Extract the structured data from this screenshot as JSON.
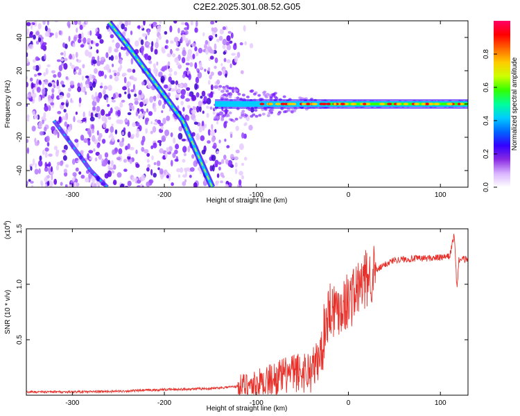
{
  "title": "C2E2.2025.301.08.52.G05",
  "chart_data": [
    {
      "type": "heatmap",
      "xlabel": "Height of straight line (km)",
      "ylabel": "Frequency (Hz)",
      "xlim": [
        -350,
        130
      ],
      "ylim": [
        -50,
        50
      ],
      "xticks": [
        -300,
        -200,
        -100,
        0,
        100
      ],
      "yticks": [
        -40,
        -20,
        0,
        20,
        40
      ],
      "colorbar": {
        "label": "Normalized spectral amplitude",
        "range": [
          0.0,
          1.0
        ],
        "ticks": [
          "0.0",
          "0.2",
          "0.4",
          "0.6",
          "0.8"
        ],
        "colors": [
          "#ffffff",
          "#d9b3ff",
          "#8a2be2",
          "#3300ff",
          "#0066ff",
          "#00ccff",
          "#00ff99",
          "#33ff00",
          "#ccff00",
          "#ffcc00",
          "#ff6600",
          "#ff0000",
          "#ff0066"
        ]
      },
      "main_track": [
        {
          "x": -260,
          "y": 49
        },
        {
          "x": -240,
          "y": 35
        },
        {
          "x": -220,
          "y": 20
        },
        {
          "x": -200,
          "y": 5
        },
        {
          "x": -180,
          "y": -10
        },
        {
          "x": -160,
          "y": -35
        },
        {
          "x": -148,
          "y": -50
        }
      ],
      "secondary_track": [
        {
          "x": -320,
          "y": -10
        },
        {
          "x": -300,
          "y": -25
        },
        {
          "x": -280,
          "y": -40
        },
        {
          "x": -262,
          "y": -50
        }
      ],
      "carrier_line": {
        "y": 0,
        "x_start": -145,
        "x_end": 130
      }
    },
    {
      "type": "line",
      "xlabel": "Height of straight line (km)",
      "ylabel": "SNR (10 * v/v)",
      "scale_label": "(x10",
      "scale_exp": "4",
      "scale_close": ")",
      "xlim": [
        -350,
        130
      ],
      "ylim": [
        0.0,
        1.5
      ],
      "xticks": [
        -300,
        -200,
        -100,
        0,
        100
      ],
      "yticks": [
        0.5,
        1.0,
        1.5
      ],
      "color": "#e8302a",
      "x": [
        -350,
        -300,
        -250,
        -200,
        -150,
        -120,
        -100,
        -80,
        -60,
        -40,
        -30,
        -25,
        -20,
        -15,
        -10,
        0,
        10,
        20,
        30,
        40,
        50,
        70,
        100,
        110,
        115,
        118,
        120,
        130
      ],
      "y": [
        0.03,
        0.03,
        0.035,
        0.05,
        0.06,
        0.08,
        0.1,
        0.15,
        0.2,
        0.22,
        0.35,
        0.65,
        0.8,
        0.78,
        0.8,
        0.85,
        0.95,
        1.05,
        1.12,
        1.18,
        1.22,
        1.23,
        1.24,
        1.25,
        1.45,
        0.95,
        1.22,
        1.23
      ]
    }
  ]
}
